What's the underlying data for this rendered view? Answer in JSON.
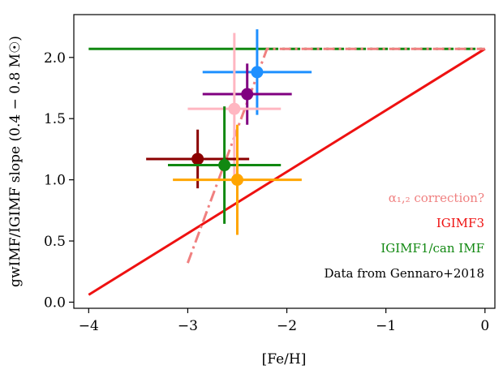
{
  "chart_data": {
    "type": "scatter",
    "xlabel": "[Fe/H]",
    "ylabel": "gwIMF/IGIMF slope (0.4 − 0.8 M☉)",
    "xlim": [
      -4.15,
      0.1
    ],
    "ylim": [
      -0.05,
      2.35
    ],
    "xticks": [
      -4,
      -3,
      -2,
      -1,
      0
    ],
    "xtick_labels": [
      "−4",
      "−3",
      "−2",
      "−1",
      "0"
    ],
    "yticks": [
      0.0,
      0.5,
      1.0,
      1.5,
      2.0
    ],
    "ytick_labels": [
      "0.0",
      "0.5",
      "1.0",
      "1.5",
      "2.0"
    ],
    "grid": false,
    "legend_placement": "lower-right",
    "annotations": [
      {
        "text": "α₁,₂ correction?",
        "color": "#f08080"
      },
      {
        "text": "IGIMF3",
        "color": "#ee1111"
      },
      {
        "text": "IGIMF1/can IMF",
        "color": "#118811"
      },
      {
        "text": "Data from Gennaro+2018",
        "color": "#000000"
      }
    ],
    "points": [
      {
        "x": -2.3,
        "y": 1.88,
        "xerr": [
          0.55,
          0.55
        ],
        "yerr": [
          0.35,
          0.35
        ],
        "color": "#1e90ff"
      },
      {
        "x": -2.4,
        "y": 1.7,
        "xerr": [
          0.45,
          0.45
        ],
        "yerr": [
          0.25,
          0.25
        ],
        "color": "#800080"
      },
      {
        "x": -2.53,
        "y": 1.58,
        "xerr": [
          0.47,
          0.47
        ],
        "yerr": [
          0.62,
          0.62
        ],
        "color": "#ffb6c1"
      },
      {
        "x": -2.9,
        "y": 1.17,
        "xerr": [
          0.52,
          0.52
        ],
        "yerr": [
          0.24,
          0.24
        ],
        "color": "#8b0000"
      },
      {
        "x": -2.63,
        "y": 1.12,
        "xerr": [
          0.57,
          0.57
        ],
        "yerr": [
          0.48,
          0.48
        ],
        "color": "#118811"
      },
      {
        "x": -2.5,
        "y": 1.0,
        "xerr": [
          0.65,
          0.65
        ],
        "yerr": [
          0.45,
          0.45
        ],
        "color": "#ffa500"
      }
    ],
    "lines": [
      {
        "name": "IGIMF1/can IMF",
        "color": "#118811",
        "style": "solid",
        "x": [
          -4.0,
          -2.2
        ],
        "y": [
          2.07,
          2.07
        ]
      },
      {
        "name": "IGIMF1/can IMF",
        "color": "#118811",
        "style": "dashdot",
        "x": [
          -2.2,
          0.0
        ],
        "y": [
          2.07,
          2.07
        ]
      },
      {
        "name": "IGIMF3",
        "color": "#ee1111",
        "style": "solid",
        "x": [
          -4.0,
          0.0
        ],
        "y": [
          0.06,
          2.07
        ]
      },
      {
        "name": "α₁,₂ correction?",
        "color": "#f08080",
        "style": "dashdot",
        "x": [
          -3.0,
          -2.2,
          0.0
        ],
        "y": [
          0.32,
          2.07,
          2.07
        ]
      }
    ]
  }
}
